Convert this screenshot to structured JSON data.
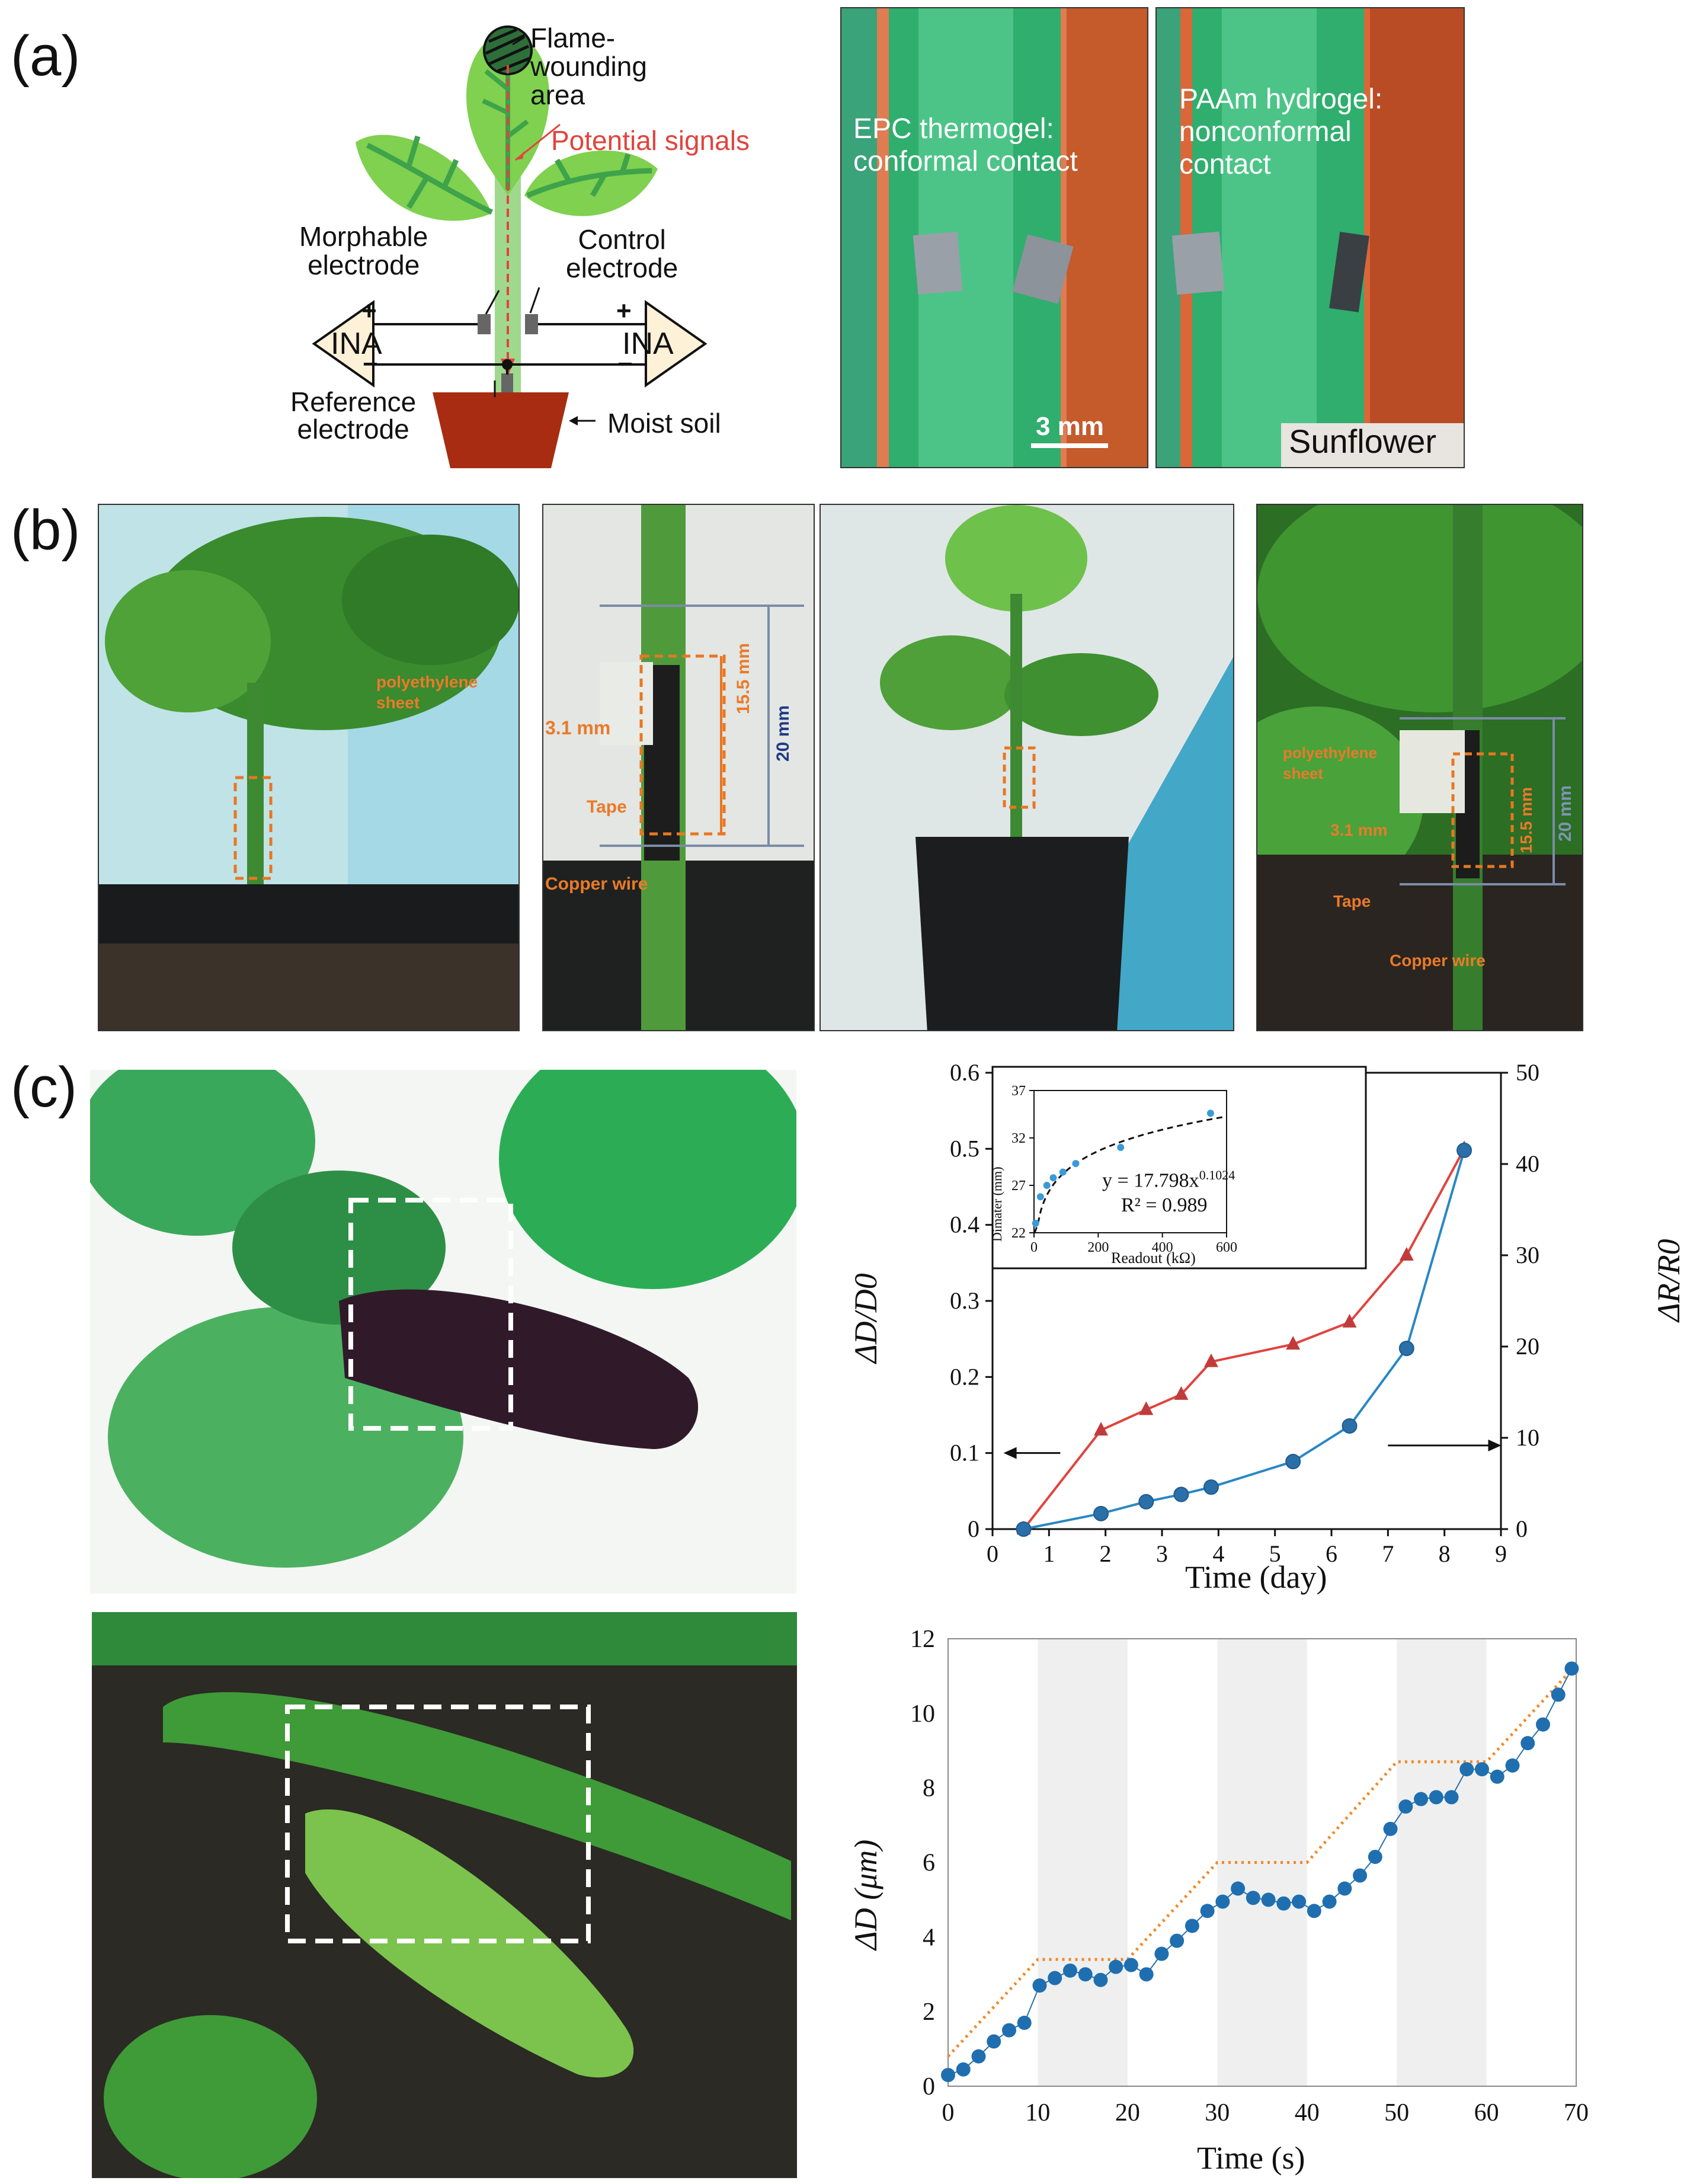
{
  "panels": {
    "a": "(a)",
    "b": "(b)",
    "c": "(c)"
  },
  "schematic": {
    "flame": "Flame-\nwounding\narea",
    "potential": "Potential signals",
    "morphable": "Morphable\nelectrode",
    "control": "Control\nelectrode",
    "ina": "INA",
    "plus": "+",
    "minus": "−",
    "reference": "Reference\nelectrode",
    "soil": "Moist soil"
  },
  "photo_a1": {
    "line1": "EPC thermogel:",
    "line2": "conformal contact",
    "scale": "3 mm"
  },
  "photo_a2": {
    "line1": "PAAm hydrogel:",
    "line2": "nonconformal",
    "line3": "contact",
    "tag": "Sunflower"
  },
  "photo_b2": {
    "poly1": "polyethylene",
    "poly2": "sheet",
    "w": "3.1 mm",
    "h155": "15.5 mm",
    "h20": "20 mm",
    "tape": "Tape",
    "copper": "Copper wire"
  },
  "photo_b4": {
    "poly1": "polyethylene",
    "poly2": "sheet",
    "w": "3.1 mm",
    "h155": "15.5 mm",
    "h20": "20 mm",
    "tape": "Tape",
    "copper": "Copper wire"
  },
  "colors": {
    "red": "#e0443e",
    "blue": "#2a87c4",
    "orange": "#f08a2a",
    "dash_orange": "#e87722"
  },
  "chart_data": [
    {
      "type": "line",
      "xlabel": "Time (day)",
      "ylabel": "ΔD/D0",
      "ylabel2": "ΔR/R0",
      "xlim": [
        0,
        9
      ],
      "ylim": [
        0,
        0.6
      ],
      "ylim2": [
        0,
        50
      ],
      "xticks": [
        "0",
        "1",
        "2",
        "3",
        "4",
        "5",
        "6",
        "7",
        "8",
        "9"
      ],
      "yticks": [
        "0",
        "0.1",
        "0.2",
        "0.3",
        "0.4",
        "0.5",
        "0.6"
      ],
      "yticks2": [
        "0",
        "10",
        "20",
        "30",
        "40",
        "50"
      ],
      "series": [
        {
          "axis": "left",
          "marker": "triangle",
          "color": "#e0443e",
          "x": [
            0.55,
            1.92,
            2.72,
            3.34,
            3.87,
            5.32,
            6.32,
            7.33,
            8.35
          ],
          "y": [
            0.0,
            0.13,
            0.157,
            0.177,
            0.22,
            0.243,
            0.272,
            0.36,
            0.5
          ]
        },
        {
          "axis": "right",
          "marker": "circle",
          "color": "#2a87c4",
          "x": [
            0.55,
            1.92,
            2.72,
            3.34,
            3.87,
            5.32,
            6.32,
            7.33,
            8.35
          ],
          "y": [
            0.0,
            1.7,
            3.0,
            3.8,
            4.6,
            7.4,
            11.3,
            19.8,
            41.5
          ]
        }
      ],
      "inset": {
        "type": "scatter",
        "xlabel": "Readout (kΩ)",
        "ylabel": "Dimater (mm)",
        "xlim": [
          0,
          600
        ],
        "ylim": [
          22,
          37
        ],
        "xticks": [
          "0",
          "200",
          "400",
          "600"
        ],
        "yticks": [
          "22",
          "27",
          "32",
          "37"
        ],
        "x": [
          5,
          20,
          40,
          60,
          90,
          130,
          270,
          550
        ],
        "y": [
          23.0,
          25.8,
          27.0,
          27.8,
          28.4,
          29.3,
          31.0,
          34.6
        ],
        "fit_a": 17.798,
        "fit_b": 0.1024,
        "eq": "y = 17.798x",
        "eq_exp": "0.1024",
        "r2": "R² = 0.989"
      }
    },
    {
      "type": "line",
      "xlabel": "Time (s)",
      "ylabel": "ΔD (μm)",
      "xlim": [
        0,
        70
      ],
      "ylim": [
        0,
        12
      ],
      "xticks": [
        "0",
        "10",
        "20",
        "30",
        "40",
        "50",
        "60",
        "70"
      ],
      "yticks": [
        "0",
        "2",
        "4",
        "6",
        "8",
        "10",
        "12"
      ],
      "x": [
        0,
        1.7,
        3.4,
        5.1,
        6.8,
        8.5,
        10.2,
        11.9,
        13.6,
        15.3,
        17,
        18.7,
        20.4,
        22.1,
        23.8,
        25.5,
        27.2,
        28.9,
        30.6,
        32.3,
        34,
        35.7,
        37.4,
        39.1,
        40.8,
        42.5,
        44.2,
        45.9,
        47.6,
        49.3,
        51,
        52.7,
        54.4,
        56.1,
        57.8,
        59.5,
        61.2,
        62.9,
        64.6,
        66.3,
        68,
        69.5
      ],
      "y": [
        0.3,
        0.45,
        0.8,
        1.2,
        1.5,
        1.7,
        2.7,
        2.9,
        3.1,
        3.0,
        2.85,
        3.2,
        3.25,
        3.0,
        3.55,
        3.9,
        4.3,
        4.7,
        4.95,
        5.3,
        5.05,
        5.0,
        4.9,
        4.95,
        4.7,
        4.95,
        5.3,
        5.65,
        6.15,
        6.9,
        7.5,
        7.7,
        7.75,
        7.75,
        8.5,
        8.5,
        8.3,
        8.6,
        9.2,
        9.7,
        10.5,
        11.2
      ],
      "trend_x": [
        0,
        10,
        20,
        30,
        40,
        50,
        60,
        70
      ],
      "trend_y": [
        0.8,
        3.4,
        3.4,
        6.0,
        6.0,
        8.7,
        8.7,
        11.3
      ]
    }
  ]
}
